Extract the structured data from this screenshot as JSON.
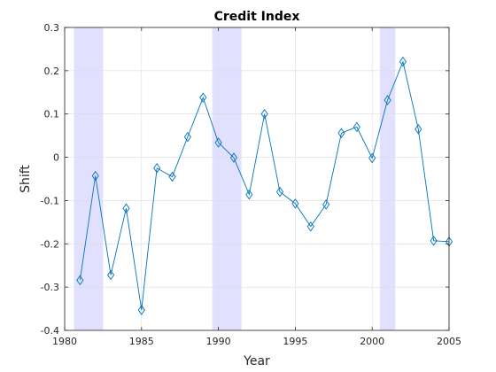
{
  "chart_data": {
    "type": "line",
    "title": "Credit Index",
    "xlabel": "Year",
    "ylabel": "Shift",
    "xlim": [
      1980,
      2005
    ],
    "ylim": [
      -0.4,
      0.3
    ],
    "xticks": [
      1980,
      1985,
      1990,
      1995,
      2000,
      2005
    ],
    "xtick_labels": [
      "1980",
      "1985",
      "1990",
      "1995",
      "2000",
      "2005"
    ],
    "yticks": [
      -0.4,
      -0.3,
      -0.2,
      -0.1,
      0,
      0.1,
      0.2,
      0.3
    ],
    "ytick_labels": [
      "-0.4",
      "-0.3",
      "-0.2",
      "-0.1",
      "0",
      "0.1",
      "0.2",
      "0.3"
    ],
    "grid": true,
    "shaded_periods": [
      {
        "start": 1980.6,
        "end": 1982.5
      },
      {
        "start": 1989.6,
        "end": 1991.5
      },
      {
        "start": 2000.5,
        "end": 2001.5
      }
    ],
    "series": [
      {
        "marker": "diamond",
        "x": [
          1981,
          1982,
          1983,
          1984,
          1985,
          1986,
          1987,
          1988,
          1989,
          1990,
          1991,
          1992,
          1993,
          1994,
          1995,
          1996,
          1997,
          1998,
          1999,
          2000,
          2001,
          2002,
          2003,
          2004,
          2005
        ],
        "values": [
          -0.284,
          -0.043,
          -0.272,
          -0.118,
          -0.353,
          -0.025,
          -0.045,
          0.047,
          0.138,
          0.034,
          -0.001,
          -0.086,
          0.1,
          -0.08,
          -0.107,
          -0.16,
          -0.109,
          0.056,
          0.07,
          -0.002,
          0.132,
          0.221,
          0.065,
          -0.193,
          -0.195
        ]
      }
    ],
    "colors": {
      "line": "#0072BD",
      "shade": "#E1E1FF",
      "grid": "#DCDCDC",
      "axis": "#262626"
    }
  }
}
